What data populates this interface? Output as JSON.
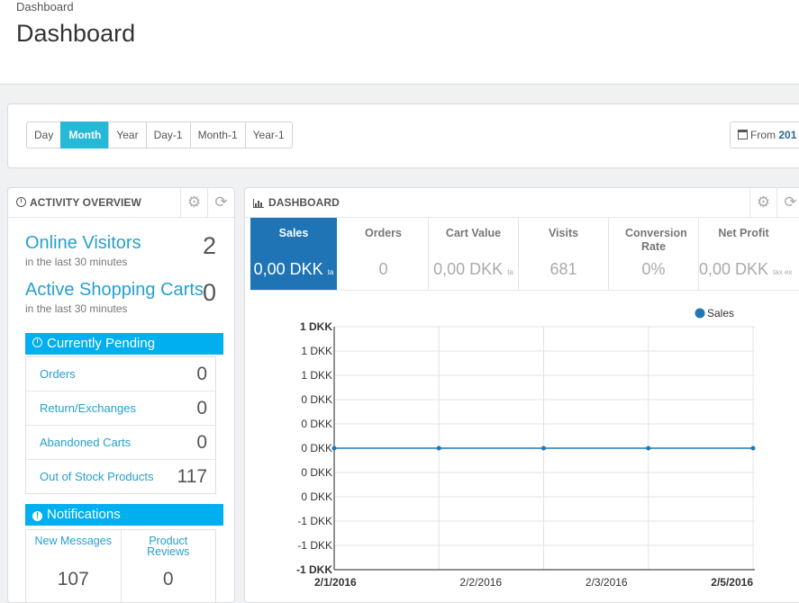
{
  "header": {
    "breadcrumb": "Dashboard",
    "title": "Dashboard"
  },
  "toolbar": {
    "periods": [
      "Day",
      "Month",
      "Year",
      "Day-1",
      "Month-1",
      "Year-1"
    ],
    "active_period": "Month",
    "from_label": "From",
    "from_value": "201"
  },
  "activity": {
    "title": "ACTIVITY OVERVIEW",
    "online_visitors": {
      "label": "Online Visitors",
      "sub": "in the last 30 minutes",
      "value": "2"
    },
    "active_carts": {
      "label": "Active Shopping Carts",
      "sub": "in the last 30 minutes",
      "value": "0"
    },
    "pending_title": "Currently Pending",
    "pending": [
      {
        "label": "Orders",
        "value": "0"
      },
      {
        "label": "Return/Exchanges",
        "value": "0"
      },
      {
        "label": "Abandoned Carts",
        "value": "0"
      },
      {
        "label": "Out of Stock Products",
        "value": "117"
      }
    ],
    "notifications_title": "Notifications",
    "notifications": [
      {
        "label": "New Messages",
        "value": "107"
      },
      {
        "label": "Product Reviews",
        "value": "0"
      }
    ]
  },
  "dashboard": {
    "title": "DASHBOARD",
    "tiles": [
      {
        "label": "Sales",
        "value": "0,00 DKK",
        "suffix": "ta"
      },
      {
        "label": "Orders",
        "value": "0",
        "suffix": ""
      },
      {
        "label": "Cart Value",
        "value": "0,00 DKK",
        "suffix": "ta"
      },
      {
        "label": "Visits",
        "value": "681",
        "suffix": ""
      },
      {
        "label": "Conversion Rate",
        "value": "0%",
        "suffix": ""
      },
      {
        "label": "Net Profit",
        "value": "0,00 DKK",
        "suffix": "tax ex"
      }
    ]
  },
  "colors": {
    "accent": "#00aff0",
    "active_tile": "#1e74b4",
    "link": "#25a0d0",
    "series": "#1f77b4"
  },
  "chart_data": {
    "type": "line",
    "legend": [
      "Sales"
    ],
    "legend_position": "top-right",
    "y_tick_labels": [
      "1 DKK",
      "1 DKK",
      "1 DKK",
      "0 DKK",
      "0 DKK",
      "0 DKK",
      "0 DKK",
      "0 DKK",
      "-1 DKK",
      "-1 DKK",
      "-1 DKK"
    ],
    "x_tick_labels": [
      "2/1/2016",
      "2/2/2016",
      "2/3/2016",
      "2/5/2016"
    ],
    "series": [
      {
        "name": "Sales",
        "x": [
          "2/1/2016",
          "2/2/2016",
          "2/3/2016",
          "2/4/2016",
          "2/5/2016"
        ],
        "values": [
          0,
          0,
          0,
          0,
          0
        ]
      }
    ],
    "ylim": [
      -1,
      1
    ],
    "grid": true
  }
}
